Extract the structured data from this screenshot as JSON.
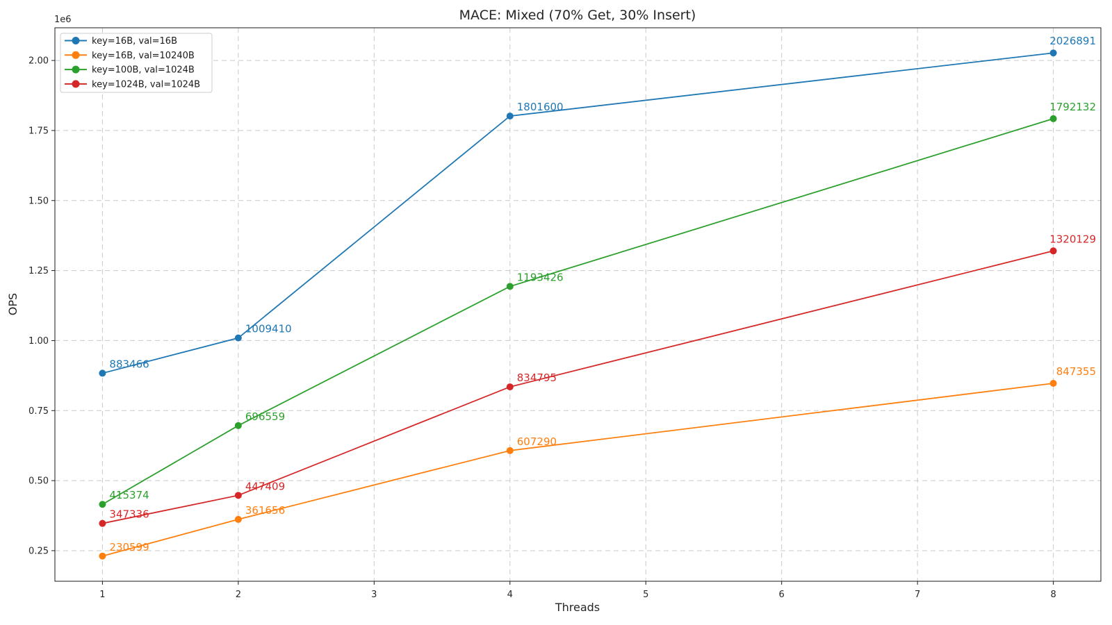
{
  "figure": {
    "title": "MACE: Mixed (70% Get, 30% Insert)",
    "xlabel": "Threads",
    "ylabel": "OPS",
    "offset_text": "1e6"
  },
  "chart_data": {
    "type": "line",
    "title": "MACE: Mixed (70% Get, 30% Insert)",
    "xlabel": "Threads",
    "ylabel": "OPS",
    "y_offset_multiplier_label": "1e6",
    "grid": true,
    "legend_position": "upper left",
    "x": [
      1,
      2,
      4,
      8
    ],
    "x_ticks": [
      1,
      2,
      3,
      4,
      5,
      6,
      7,
      8
    ],
    "y_ticks_e6": [
      0.25,
      0.5,
      0.75,
      1.0,
      1.25,
      1.5,
      1.75,
      2.0
    ],
    "xlim": [
      0.65,
      8.35
    ],
    "ylim": [
      140784,
      2116706
    ],
    "series": [
      {
        "name": "key=16B, val=16B",
        "color": "#1f77b4",
        "values": [
          883466,
          1009410,
          1801600,
          2026891
        ]
      },
      {
        "name": "key=16B, val=10240B",
        "color": "#ff7f0e",
        "values": [
          230599,
          361656,
          607290,
          847355
        ]
      },
      {
        "name": "key=100B, val=1024B",
        "color": "#2ca02c",
        "values": [
          415374,
          696559,
          1193426,
          1792132
        ]
      },
      {
        "name": "key=1024B, val=1024B",
        "color": "#d62728",
        "values": [
          347336,
          447409,
          834795,
          1320129
        ]
      }
    ]
  }
}
